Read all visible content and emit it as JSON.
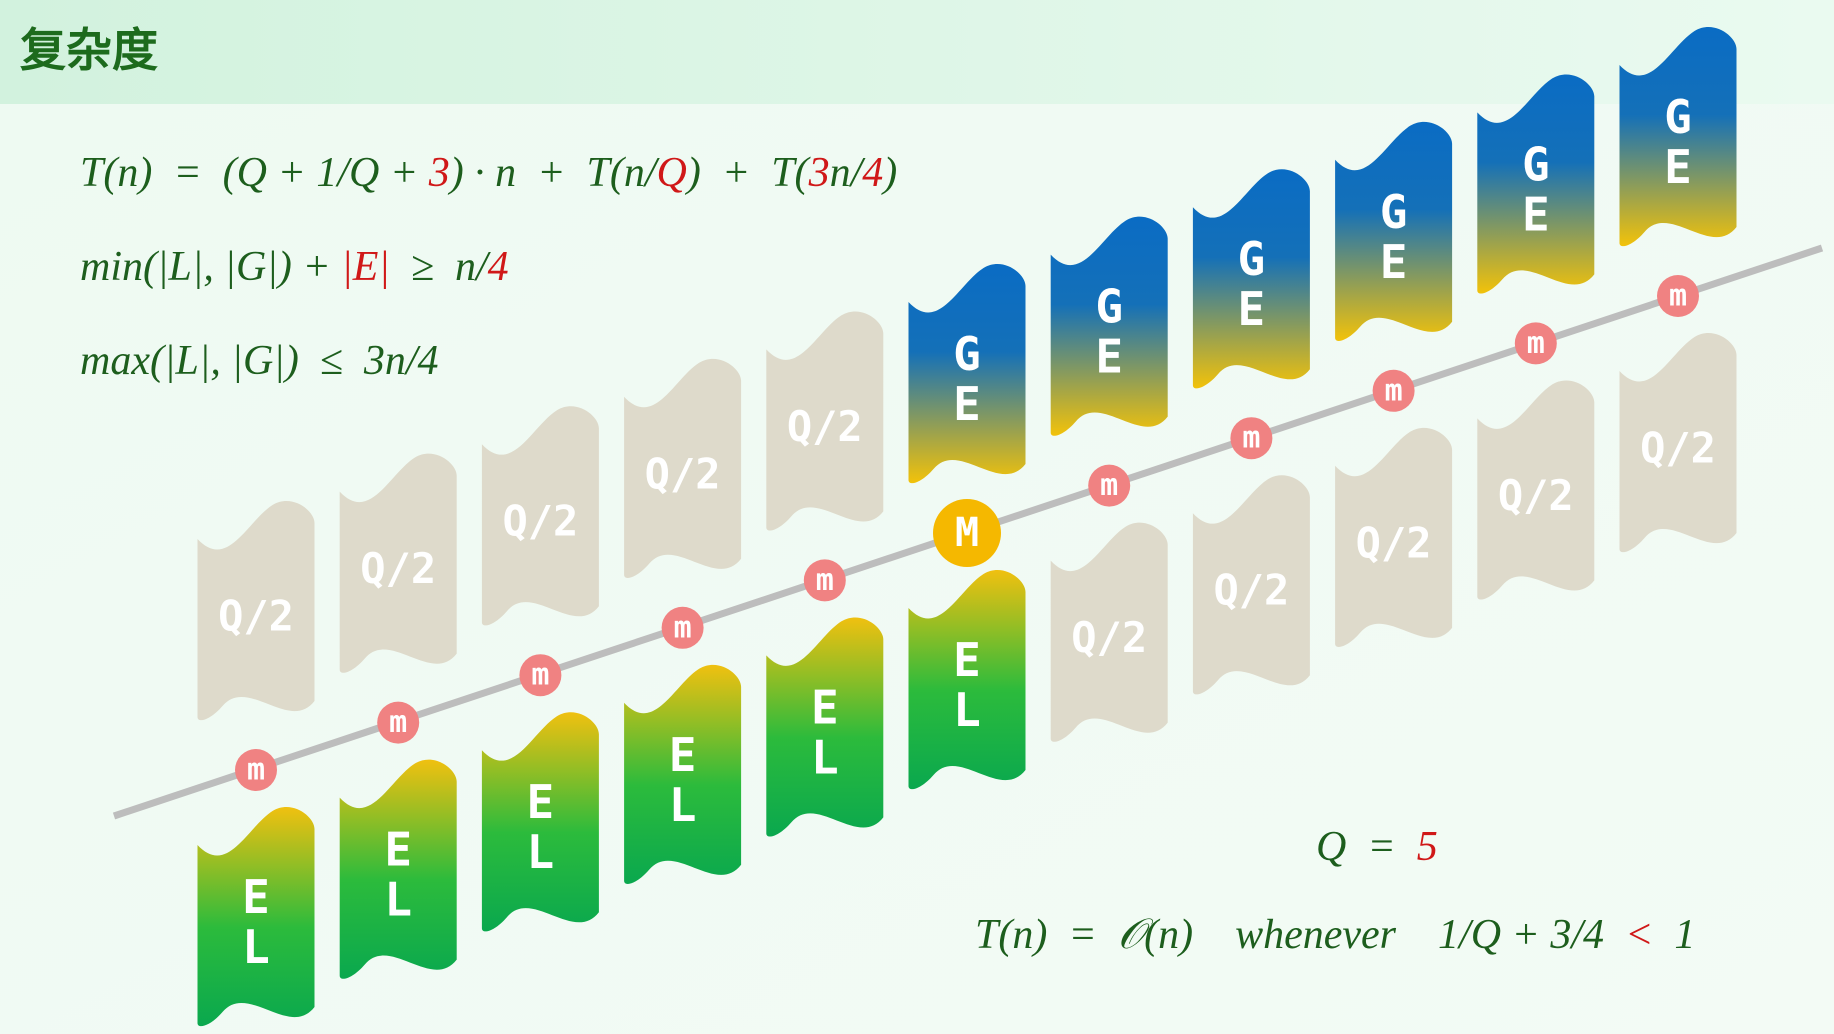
{
  "header": {
    "title": "复杂度"
  },
  "formulas": [
    {
      "parts": [
        {
          "text": "T(n)  =  (Q + 1/Q + ",
          "color": "#1d5e1d"
        },
        {
          "text": "3",
          "color": "#d01818"
        },
        {
          "text": ") · n  +  T(n/",
          "color": "#1d5e1d"
        },
        {
          "text": "Q",
          "color": "#d01818"
        },
        {
          "text": ")  +  T(",
          "color": "#1d5e1d"
        },
        {
          "text": "3",
          "color": "#d01818"
        },
        {
          "text": "n/",
          "color": "#1d5e1d"
        },
        {
          "text": "4",
          "color": "#d01818"
        },
        {
          "text": ")",
          "color": "#1d5e1d"
        }
      ]
    },
    {
      "parts": [
        {
          "text": "min(|L|, |G|) + ",
          "color": "#1d5e1d"
        },
        {
          "text": "|E|",
          "color": "#d01818"
        },
        {
          "text": "  ≥  n/",
          "color": "#1d5e1d"
        },
        {
          "text": "4",
          "color": "#d01818"
        }
      ]
    },
    {
      "parts": [
        {
          "text": "max(|L|, |G|)  ≤  3n/4",
          "color": "#1d5e1d"
        }
      ]
    },
    {
      "parts": [
        {
          "text": "Q  =  ",
          "color": "#1d5e1d"
        },
        {
          "text": "5",
          "color": "#d01818"
        }
      ]
    },
    {
      "parts": [
        {
          "text": "T(n)  =  𝒪(n)    whenever    1/Q + 3/4  ",
          "color": "#1d5e1d"
        },
        {
          "text": "<",
          "color": "#d01818"
        },
        {
          "text": "  1",
          "color": "#1d5e1d"
        }
      ]
    }
  ],
  "columns": [
    {
      "top": {
        "style": "plain",
        "labels": [
          "Q/2"
        ]
      },
      "marker": "m",
      "bottom": {
        "style": "el",
        "labels": [
          "E",
          "L"
        ]
      }
    },
    {
      "top": {
        "style": "plain",
        "labels": [
          "Q/2"
        ]
      },
      "marker": "m",
      "bottom": {
        "style": "el",
        "labels": [
          "E",
          "L"
        ]
      }
    },
    {
      "top": {
        "style": "plain",
        "labels": [
          "Q/2"
        ]
      },
      "marker": "m",
      "bottom": {
        "style": "el",
        "labels": [
          "E",
          "L"
        ]
      }
    },
    {
      "top": {
        "style": "plain",
        "labels": [
          "Q/2"
        ]
      },
      "marker": "m",
      "bottom": {
        "style": "el",
        "labels": [
          "E",
          "L"
        ]
      }
    },
    {
      "top": {
        "style": "plain",
        "labels": [
          "Q/2"
        ]
      },
      "marker": "m",
      "bottom": {
        "style": "el",
        "labels": [
          "E",
          "L"
        ]
      }
    },
    {
      "top": {
        "style": "ge",
        "labels": [
          "G",
          "E"
        ]
      },
      "marker": "M",
      "bottom": {
        "style": "el",
        "labels": [
          "E",
          "L"
        ]
      }
    },
    {
      "top": {
        "style": "ge",
        "labels": [
          "G",
          "E"
        ]
      },
      "marker": "m",
      "bottom": {
        "style": "plain",
        "labels": [
          "Q/2"
        ]
      }
    },
    {
      "top": {
        "style": "ge",
        "labels": [
          "G",
          "E"
        ]
      },
      "marker": "m",
      "bottom": {
        "style": "plain",
        "labels": [
          "Q/2"
        ]
      }
    },
    {
      "top": {
        "style": "ge",
        "labels": [
          "G",
          "E"
        ]
      },
      "marker": "m",
      "bottom": {
        "style": "plain",
        "labels": [
          "Q/2"
        ]
      }
    },
    {
      "top": {
        "style": "ge",
        "labels": [
          "G",
          "E"
        ]
      },
      "marker": "m",
      "bottom": {
        "style": "plain",
        "labels": [
          "Q/2"
        ]
      }
    },
    {
      "top": {
        "style": "ge",
        "labels": [
          "G",
          "E"
        ]
      },
      "marker": "m",
      "bottom": {
        "style": "plain",
        "labels": [
          "Q/2"
        ]
      }
    }
  ]
}
